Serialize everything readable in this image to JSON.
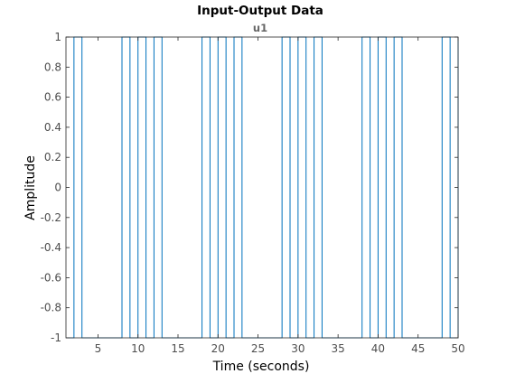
{
  "chart_data": {
    "type": "line",
    "title": "Input-Output Data",
    "subtitle": "u1",
    "xlabel": "Time (seconds)",
    "ylabel": "Amplitude",
    "xlim": [
      1,
      50
    ],
    "ylim": [
      -1,
      1
    ],
    "xticks": [
      5,
      10,
      15,
      20,
      25,
      30,
      35,
      40,
      45,
      50
    ],
    "yticks": [
      -1,
      -0.8,
      -0.6,
      -0.4,
      -0.2,
      0,
      0.2,
      0.4,
      0.6,
      0.8,
      1
    ],
    "grid": false,
    "series": [
      {
        "style": "stairs",
        "x": [
          1,
          2,
          3,
          8,
          9,
          10,
          11,
          12,
          13,
          18,
          19,
          20,
          21,
          22,
          23,
          28,
          29,
          30,
          31,
          32,
          33,
          38,
          39,
          40,
          41,
          42,
          43,
          48,
          49,
          50
        ],
        "y": [
          -1,
          1,
          -1,
          1,
          -1,
          1,
          -1,
          1,
          -1,
          1,
          -1,
          1,
          -1,
          1,
          -1,
          1,
          -1,
          1,
          -1,
          1,
          -1,
          1,
          -1,
          1,
          -1,
          1,
          -1,
          1,
          -1,
          1
        ]
      }
    ]
  },
  "colors": {
    "series": "#0072bd",
    "axes": "#262626",
    "tick_label": "#4d4d4d",
    "subtitle": "#666666",
    "title": "#000000"
  }
}
